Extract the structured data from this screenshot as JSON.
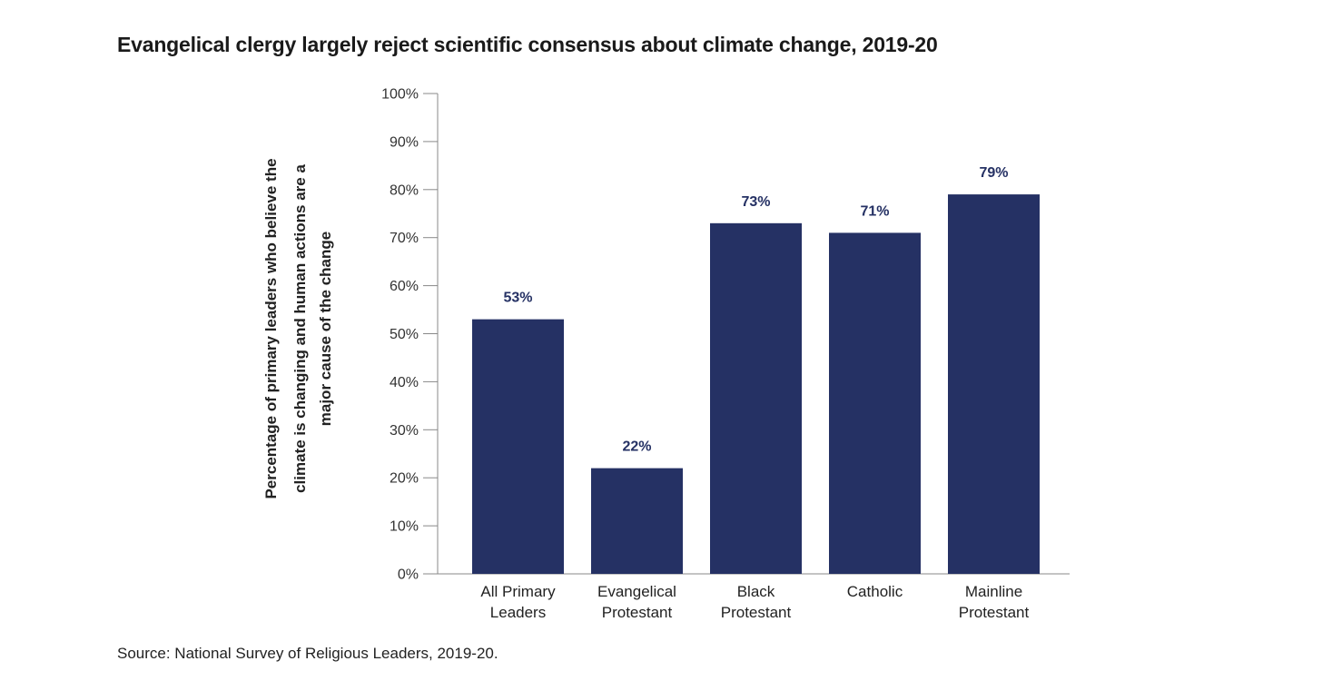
{
  "chart_data": {
    "type": "bar",
    "title": "Evangelical clergy largely reject scientific consensus about climate change, 2019-20",
    "ylabel": "Percentage of primary leaders who believe the climate is changing and human actions are a major cause of the change",
    "ylabel_lines": [
      "Percentage of primary leaders who believe the",
      "climate is changing and human actions are a",
      "major cause of the change"
    ],
    "xlabel": "",
    "categories": [
      [
        "All Primary",
        "Leaders"
      ],
      [
        "Evangelical",
        "Protestant"
      ],
      [
        "Black",
        "Protestant"
      ],
      [
        "Catholic"
      ],
      [
        "Mainline",
        "Protestant"
      ]
    ],
    "values": [
      53,
      22,
      73,
      71,
      79
    ],
    "data_labels": [
      "53%",
      "22%",
      "73%",
      "71%",
      "79%"
    ],
    "ylim": [
      0,
      100
    ],
    "yticks": [
      0,
      10,
      20,
      30,
      40,
      50,
      60,
      70,
      80,
      90,
      100
    ],
    "ytick_labels": [
      "0%",
      "10%",
      "20%",
      "30%",
      "40%",
      "50%",
      "60%",
      "70%",
      "80%",
      "90%",
      "100%"
    ],
    "grid": false,
    "legend": "none",
    "colors": {
      "bar": "#253164",
      "label": "#253164",
      "axis": "#888888"
    }
  },
  "source": "Source: National Survey of Religious Leaders, 2019-20."
}
